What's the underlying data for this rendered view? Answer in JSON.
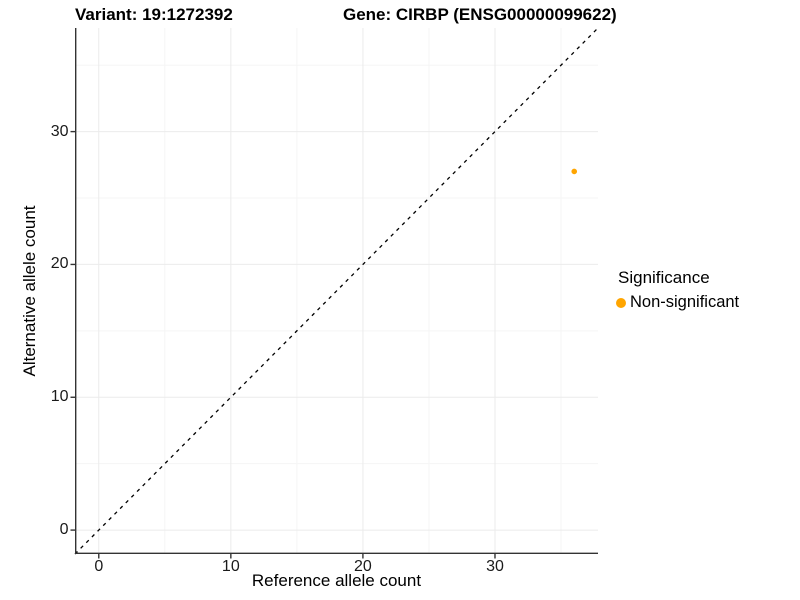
{
  "chart_data": {
    "type": "scatter",
    "title_left": "Variant: 19:1272392",
    "title_right": "Gene: CIRBP (ENSG00000099622)",
    "xlabel": "Reference allele count",
    "ylabel": "Alternative allele count",
    "xlim": [
      -1.8,
      37.8
    ],
    "ylim": [
      -1.8,
      37.8
    ],
    "x_major_ticks": [
      0,
      10,
      20,
      30
    ],
    "x_minor_ticks": [
      5,
      15,
      25,
      35
    ],
    "y_major_ticks": [
      0,
      10,
      20,
      30
    ],
    "y_minor_ticks": [
      5,
      15,
      25,
      35
    ],
    "grid": true,
    "series": [
      {
        "name": "Non-significant",
        "color": "#FFA500",
        "points": [
          {
            "x": 36,
            "y": 27
          }
        ]
      }
    ],
    "identity_line": {
      "style": "dashed",
      "slope": 1,
      "intercept": 0,
      "color": "#000000"
    },
    "legend": {
      "title": "Significance",
      "position": "right",
      "items": [
        {
          "label": "Non-significant",
          "color": "#FFA500"
        }
      ]
    },
    "colors": {
      "background": "#FFFFFF",
      "grid_major": "#EBEBEB",
      "grid_minor": "#F5F5F5",
      "axis": "#333333",
      "tick_text": "#1A1A1A"
    }
  }
}
